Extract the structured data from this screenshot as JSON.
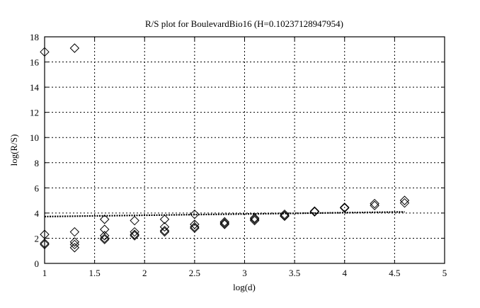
{
  "chart_data": {
    "type": "scatter",
    "title": "R/S plot for BoulevardBio16 (H=0.10237128947954)",
    "xlabel": "log(d)",
    "ylabel": "log(R/S)",
    "xlim": [
      1,
      5
    ],
    "ylim": [
      0,
      18
    ],
    "xticks": [
      "1",
      "1.5",
      "2",
      "2.5",
      "3",
      "3.5",
      "4",
      "4.5",
      "5"
    ],
    "yticks": [
      "0",
      "2",
      "4",
      "6",
      "8",
      "10",
      "12",
      "14",
      "16",
      "18"
    ],
    "grid": true,
    "marker": "diamond",
    "points": [
      [
        1,
        16.8
      ],
      [
        1,
        2.3
      ],
      [
        1,
        1.6
      ],
      [
        1,
        1.5
      ],
      [
        1.3,
        17.1
      ],
      [
        1.3,
        2.5
      ],
      [
        1.3,
        1.7
      ],
      [
        1.3,
        1.5
      ],
      [
        1.3,
        1.25
      ],
      [
        1.6,
        3.5
      ],
      [
        1.6,
        2.7
      ],
      [
        1.6,
        2.2
      ],
      [
        1.6,
        2.0
      ],
      [
        1.6,
        1.9
      ],
      [
        1.9,
        3.4
      ],
      [
        1.9,
        2.5
      ],
      [
        1.9,
        2.3
      ],
      [
        1.9,
        2.2
      ],
      [
        2.2,
        3.5
      ],
      [
        2.2,
        2.9
      ],
      [
        2.2,
        2.6
      ],
      [
        2.2,
        2.5
      ],
      [
        2.5,
        3.9
      ],
      [
        2.5,
        3.1
      ],
      [
        2.5,
        2.9
      ],
      [
        2.5,
        2.8
      ],
      [
        2.8,
        3.3
      ],
      [
        2.8,
        3.2
      ],
      [
        2.8,
        3.1
      ],
      [
        3.1,
        3.6
      ],
      [
        3.1,
        3.5
      ],
      [
        3.1,
        3.4
      ],
      [
        3.4,
        3.9
      ],
      [
        3.4,
        3.8
      ],
      [
        3.4,
        3.75
      ],
      [
        3.7,
        4.15
      ],
      [
        3.7,
        4.1
      ],
      [
        4.0,
        4.45
      ],
      [
        4.0,
        4.4
      ],
      [
        4.3,
        4.75
      ],
      [
        4.3,
        4.6
      ],
      [
        4.6,
        5.0
      ],
      [
        4.6,
        4.8
      ]
    ],
    "fit_line": {
      "x": [
        1,
        4.6
      ],
      "y": [
        3.72,
        4.09
      ],
      "style": "dotted"
    }
  }
}
